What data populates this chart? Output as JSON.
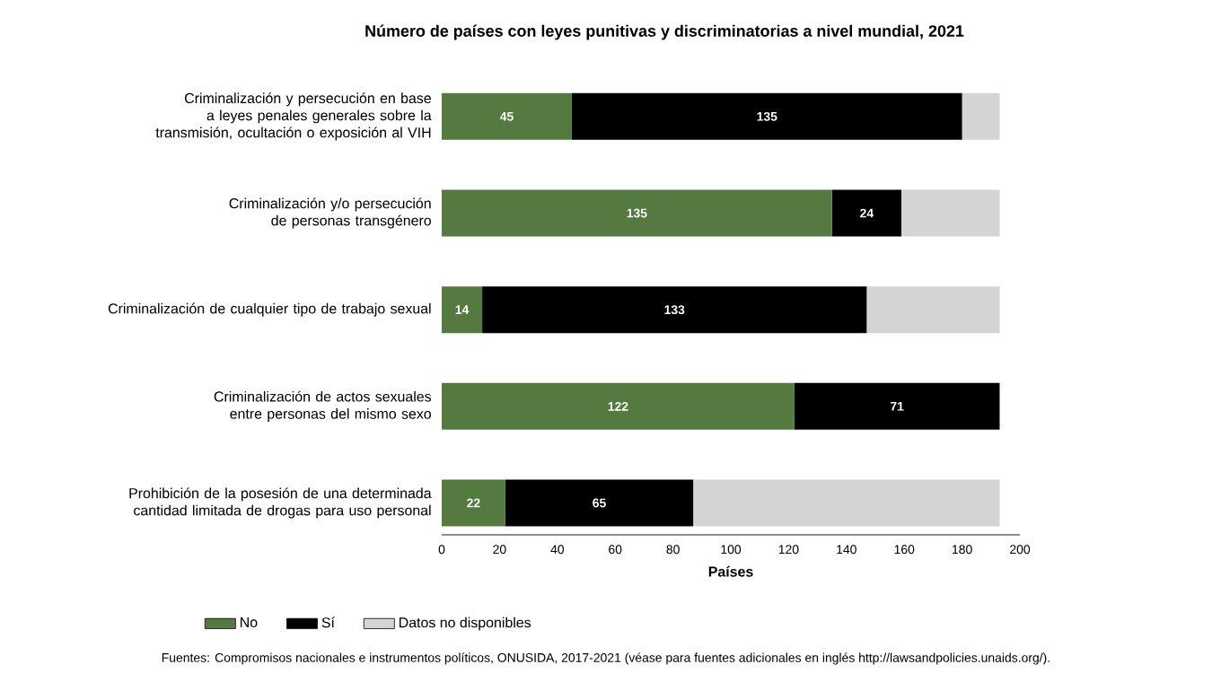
{
  "chart_data": {
    "type": "bar",
    "orientation": "horizontal",
    "stacked": true,
    "title": "Número de países con leyes punitivas y discriminatorias a nivel mundial, 2021",
    "xlabel": "Países",
    "categories": [
      "Criminalización y persecución en base a leyes penales generales sobre la transmisión, ocultación o exposición al VIH",
      "Criminalización y/o persecución de personas transgénero",
      "Criminalización de cualquier tipo de trabajo sexual",
      "Criminalización de actos sexuales entre personas del mismo sexo",
      "Prohibición de la posesión de una determinada cantidad limitada de drogas para uso personal"
    ],
    "series": [
      {
        "name": "No",
        "color": "#557a40",
        "values": [
          45,
          135,
          14,
          122,
          22
        ],
        "value_labels": [
          "45",
          "135",
          "14",
          "122",
          "22"
        ]
      },
      {
        "name": "Sí",
        "color": "#000000",
        "values": [
          135,
          24,
          133,
          71,
          65
        ],
        "value_labels": [
          "135",
          "24",
          "133",
          "71",
          "65"
        ]
      },
      {
        "name": "Datos no disponibles",
        "color": "#d4d4d4",
        "values": [
          13,
          34,
          46,
          0,
          106
        ]
      }
    ],
    "xlim": [
      0,
      200
    ],
    "xticks": [
      0,
      20,
      40,
      60,
      80,
      100,
      120,
      140,
      160,
      180,
      200
    ],
    "legend": "bottom left",
    "annotations": [
      "Fuentes: Compromisos nacionales e instrumentos políticos, ONUSIDA, 2017-2021 (véase para fuentes adicionales en inglés http://lawsandpolicies.unaids.org/)."
    ]
  }
}
